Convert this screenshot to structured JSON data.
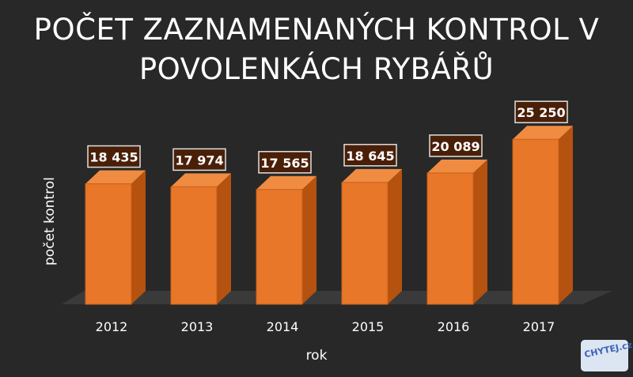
{
  "header": {
    "title_line1": "POČET ZAZNAMENANÝCH KONTROL V",
    "title_line2": "POVOLENKÁCH RYBÁŘŮ"
  },
  "chart_data": {
    "type": "bar",
    "title": "POČET ZAZNAMENANÝCH KONTROL V POVOLENKÁCH RYBÁŘŮ",
    "xlabel": "rok",
    "ylabel": "počet kontrol",
    "categories": [
      "2012",
      "2013",
      "2014",
      "2015",
      "2016",
      "2017"
    ],
    "values": [
      18435,
      17974,
      17565,
      18645,
      20089,
      25250
    ],
    "value_labels": [
      "18 435",
      "17 974",
      "17 565",
      "18 645",
      "20 089",
      "25 250"
    ],
    "ylim": [
      0,
      26000
    ],
    "grid": false,
    "legend": "none",
    "bar_color": "#e8772a",
    "bar_side_color": "#b5520f",
    "bar_top_color": "#f08c42"
  },
  "logo": {
    "text": "CHYTEJ.cz"
  }
}
